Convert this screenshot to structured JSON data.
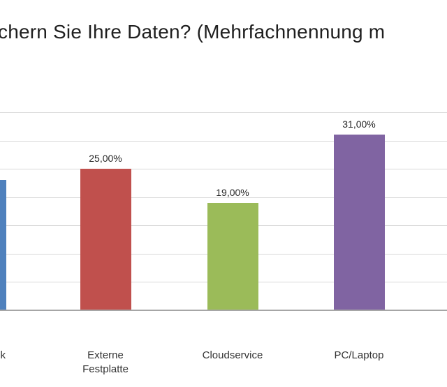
{
  "chart_data": {
    "type": "bar",
    "title": "chern Sie Ihre Daten? (Mehrfachnennung m",
    "title_note": "clipped at both left and right image edges",
    "categories": [
      "k",
      "Externe Festplatte",
      "Cloudservice",
      "PC/Laptop"
    ],
    "category_lines": [
      [
        "k"
      ],
      [
        "Externe",
        "Festplatte"
      ],
      [
        "Cloudservice"
      ],
      [
        "PC/Laptop"
      ]
    ],
    "first_category_clipped": true,
    "values": [
      23,
      25,
      19,
      31
    ],
    "value_labels": [
      "",
      "25,00%",
      "19,00%",
      "31,00%"
    ],
    "value_labels_visible": [
      false,
      true,
      true,
      true
    ],
    "bar_colors": [
      "#4F81BD",
      "#C0504D",
      "#9BBB59",
      "#8064A2"
    ],
    "xlabel": "",
    "ylabel": "",
    "ylim": [
      0,
      35
    ],
    "gridline_step": 5,
    "grid": true,
    "legend": "none"
  },
  "style_colors": {
    "background": "#FFFFFF",
    "gridline": "#D9D9D9",
    "axis_line": "#A6A6A6",
    "title_text": "#1F1F1F",
    "label_text": "#262626",
    "category_text": "#333333"
  }
}
